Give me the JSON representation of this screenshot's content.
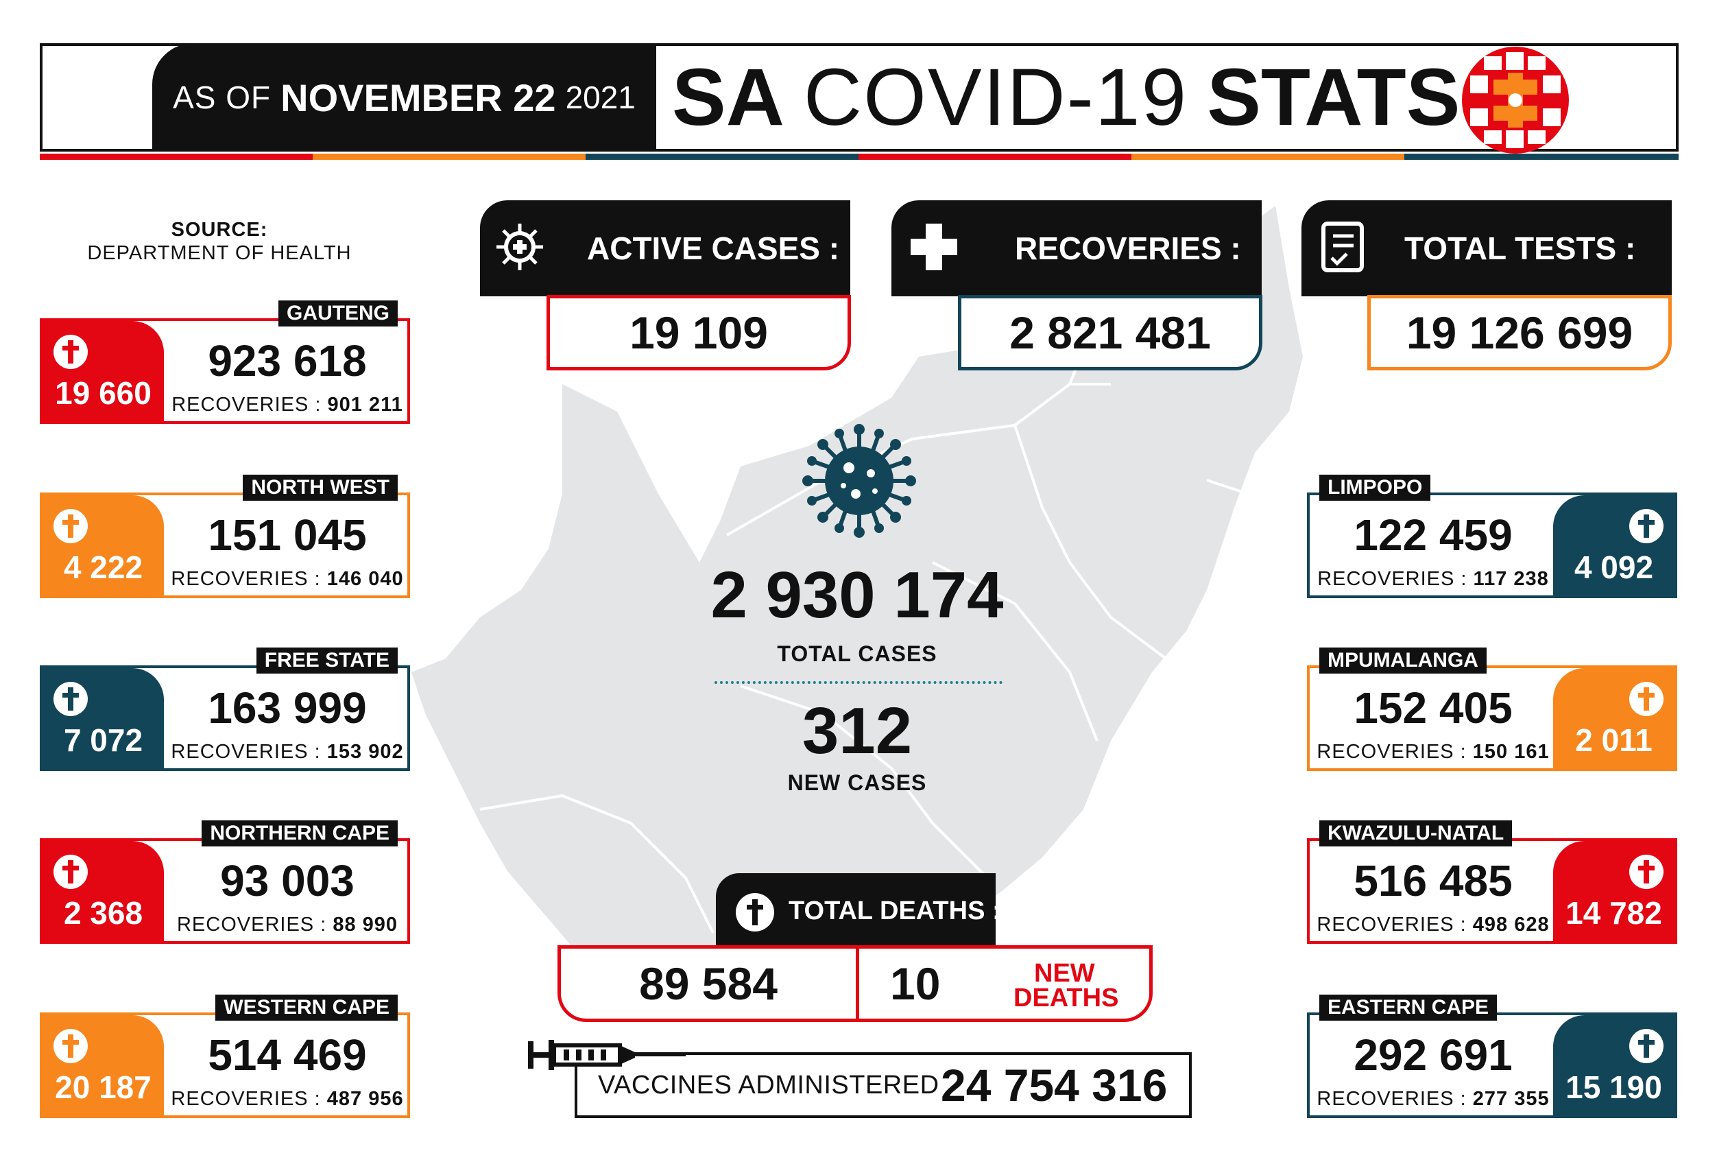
{
  "header": {
    "as_of_label": "AS OF",
    "date": "NOVEMBER 22",
    "year": "2021",
    "title_sa": "SA",
    "title_covid": "COVID-19",
    "title_stats": "STATS"
  },
  "source": {
    "label": "SOURCE:",
    "value": "DEPARTMENT OF HEALTH"
  },
  "colors": {
    "red": "#e30613",
    "orange": "#f7861d",
    "navy": "#134558",
    "black": "#111111",
    "map": "#e4e5e7"
  },
  "stats": {
    "active": {
      "label": "ACTIVE CASES",
      "colon": ":",
      "value": "19 109",
      "icon": "virus-icon"
    },
    "recoveries": {
      "label": "RECOVERIES",
      "colon": ":",
      "value": "2 821 481",
      "icon": "plus-icon"
    },
    "tests": {
      "label": "TOTAL TESTS",
      "colon": ":",
      "value": "19 126 699",
      "icon": "clipboard-icon"
    }
  },
  "center": {
    "total_cases": "2 930 174",
    "total_cases_label": "TOTAL CASES",
    "new_cases": "312",
    "new_cases_label": "NEW CASES"
  },
  "deaths": {
    "label": "TOTAL DEATHS",
    "colon": ":",
    "total": "89 584",
    "new": "10",
    "new_label_1": "NEW",
    "new_label_2": "DEATHS"
  },
  "vaccines": {
    "label": "VACCINES ADMINISTERED",
    "value": "24 754 316"
  },
  "recoveries_label": "RECOVERIES :",
  "provinces": {
    "gauteng": {
      "name": "GAUTENG",
      "cases": "923 618",
      "recoveries": "901 211",
      "deaths": "19 660"
    },
    "north_west": {
      "name": "NORTH WEST",
      "cases": "151 045",
      "recoveries": "146 040",
      "deaths": "4 222"
    },
    "free_state": {
      "name": "FREE STATE",
      "cases": "163 999",
      "recoveries": "153 902",
      "deaths": "7 072"
    },
    "northern_cape": {
      "name": "NORTHERN CAPE",
      "cases": "93 003",
      "recoveries": "88 990",
      "deaths": "2 368"
    },
    "western_cape": {
      "name": "WESTERN CAPE",
      "cases": "514 469",
      "recoveries": "487 956",
      "deaths": "20 187"
    },
    "limpopo": {
      "name": "LIMPOPO",
      "cases": "122 459",
      "recoveries": "117 238",
      "deaths": "4 092"
    },
    "mpumalanga": {
      "name": "MPUMALANGA",
      "cases": "152 405",
      "recoveries": "150 161",
      "deaths": "2 011"
    },
    "kwazulu_natal": {
      "name": "KWAZULU-NATAL",
      "cases": "516 485",
      "recoveries": "498 628",
      "deaths": "14 782"
    },
    "eastern_cape": {
      "name": "EASTERN CAPE",
      "cases": "292 691",
      "recoveries": "277 355",
      "deaths": "15 190"
    }
  }
}
